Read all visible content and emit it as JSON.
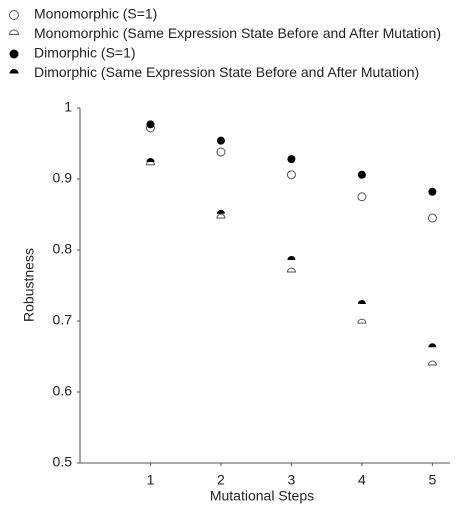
{
  "chart_data": {
    "type": "scatter",
    "x_label": "Mutational Steps",
    "y_label": "Robustness",
    "x": [
      1,
      2,
      3,
      4,
      5
    ],
    "xlim": [
      0,
      5.25
    ],
    "xticks": [
      1,
      2,
      3,
      4,
      5
    ],
    "ylim": [
      0.5,
      1
    ],
    "yticks": [
      0.5,
      0.6,
      0.7,
      0.8,
      0.9,
      1
    ],
    "grid": false,
    "series": [
      {
        "name": "Monomorphic (S=1)",
        "color": "#555555",
        "marker": "circle-open",
        "values": [
          0.972,
          0.938,
          0.906,
          0.875,
          0.845
        ]
      },
      {
        "name": "Monomorphic (Same Expression State Before and After Mutation)",
        "color": "#555555",
        "marker": "half-open",
        "values": [
          0.92,
          0.845,
          0.769,
          0.697,
          0.638
        ]
      },
      {
        "name": "Dimorphic (S=1)",
        "color": "#000000",
        "marker": "circle-filled",
        "values": [
          0.977,
          0.954,
          0.928,
          0.906,
          0.882
        ]
      },
      {
        "name": "Dimorphic (Same Expression State Before and After Mutation)",
        "color": "#000000",
        "marker": "half-filled",
        "values": [
          0.924,
          0.851,
          0.786,
          0.724,
          0.663
        ]
      }
    ]
  }
}
